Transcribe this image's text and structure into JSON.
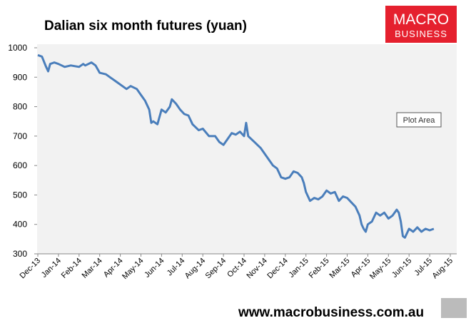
{
  "chart_data": {
    "type": "line",
    "title": "Dalian six month futures (yuan)",
    "brand": {
      "line1": "MACRO",
      "line2": "BUSINESS"
    },
    "footer": "www.macrobusiness.com.au",
    "annotation": "Plot Area",
    "xlim": [
      0,
      20
    ],
    "xticks": [
      {
        "value": 0,
        "label": "Dec-13"
      },
      {
        "value": 1,
        "label": "Jan-14"
      },
      {
        "value": 2,
        "label": "Feb-14"
      },
      {
        "value": 3,
        "label": "Mar-14"
      },
      {
        "value": 4,
        "label": "Apr-14"
      },
      {
        "value": 5,
        "label": "May-14"
      },
      {
        "value": 6,
        "label": "Jun-14"
      },
      {
        "value": 7,
        "label": "Jul-14"
      },
      {
        "value": 8,
        "label": "Aug-14"
      },
      {
        "value": 9,
        "label": "Sep-14"
      },
      {
        "value": 10,
        "label": "Oct-14"
      },
      {
        "value": 11,
        "label": "Nov-14"
      },
      {
        "value": 12,
        "label": "Dec-14"
      },
      {
        "value": 13,
        "label": "Jan-15"
      },
      {
        "value": 14,
        "label": "Feb-15"
      },
      {
        "value": 15,
        "label": "Mar-15"
      },
      {
        "value": 16,
        "label": "Apr-15"
      },
      {
        "value": 17,
        "label": "May-15"
      },
      {
        "value": 18,
        "label": "Jun-15"
      },
      {
        "value": 19,
        "label": "Jul-15"
      },
      {
        "value": 20,
        "label": "Aug-15"
      }
    ],
    "ylim": [
      300,
      1000
    ],
    "yticks": [
      300,
      400,
      500,
      600,
      700,
      800,
      900,
      1000
    ],
    "series": [
      {
        "color": "#4a7ebb",
        "x": [
          0,
          0.2,
          0.4,
          0.5,
          0.6,
          0.8,
          1.0,
          1.3,
          1.6,
          2.0,
          2.2,
          2.3,
          2.6,
          2.8,
          3.0,
          3.3,
          3.5,
          3.7,
          3.9,
          4.1,
          4.3,
          4.5,
          4.8,
          5.0,
          5.2,
          5.4,
          5.5,
          5.6,
          5.8,
          6.0,
          6.2,
          6.4,
          6.5,
          6.7,
          6.9,
          7.1,
          7.3,
          7.5,
          7.8,
          8.0,
          8.3,
          8.6,
          8.8,
          9.0,
          9.2,
          9.4,
          9.6,
          9.8,
          10.0,
          10.1,
          10.2,
          10.5,
          10.8,
          11.0,
          11.2,
          11.4,
          11.6,
          11.8,
          12.0,
          12.2,
          12.4,
          12.6,
          12.8,
          12.9,
          13.0,
          13.2,
          13.4,
          13.6,
          13.8,
          14.0,
          14.2,
          14.4,
          14.6,
          14.8,
          15.0,
          15.2,
          15.4,
          15.6,
          15.7,
          15.8,
          15.9,
          16.0,
          16.2,
          16.4,
          16.6,
          16.8,
          17.0,
          17.2,
          17.4,
          17.5,
          17.6,
          17.7,
          17.8,
          18.0,
          18.2,
          18.4,
          18.6,
          18.8,
          19.0,
          19.2
        ],
        "values": [
          975,
          970,
          935,
          920,
          945,
          950,
          945,
          935,
          940,
          935,
          945,
          940,
          950,
          940,
          915,
          910,
          900,
          890,
          880,
          870,
          860,
          870,
          860,
          840,
          820,
          790,
          745,
          750,
          740,
          790,
          780,
          800,
          825,
          810,
          790,
          775,
          770,
          740,
          720,
          725,
          700,
          700,
          680,
          670,
          690,
          710,
          705,
          715,
          700,
          745,
          700,
          680,
          660,
          640,
          620,
          600,
          590,
          560,
          555,
          560,
          580,
          575,
          560,
          540,
          510,
          480,
          490,
          485,
          495,
          515,
          505,
          510,
          480,
          495,
          490,
          475,
          460,
          430,
          400,
          385,
          375,
          400,
          410,
          440,
          430,
          440,
          420,
          430,
          450,
          440,
          410,
          360,
          355,
          385,
          375,
          390,
          375,
          385,
          380,
          385
        ]
      }
    ]
  }
}
